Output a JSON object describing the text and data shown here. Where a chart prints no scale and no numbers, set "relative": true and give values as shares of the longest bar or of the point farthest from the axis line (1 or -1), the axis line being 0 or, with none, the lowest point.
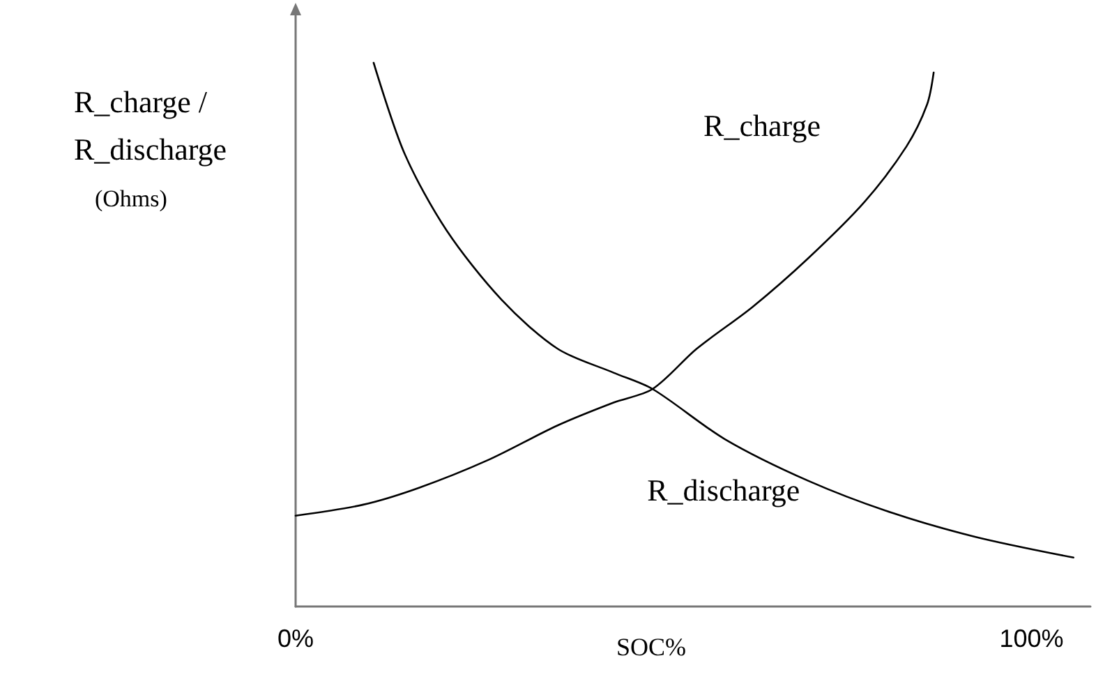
{
  "chart_data": {
    "type": "line",
    "xlabel": "SOC%",
    "ylabel": "R_charge /\nR_discharge\n(Ohms)",
    "relative": true,
    "xlim": [
      0,
      108
    ],
    "xticks": [
      {
        "value": 0,
        "label": "0%"
      },
      {
        "value": 100,
        "label": "100%"
      }
    ],
    "marker": "none",
    "grid": false,
    "legend": false,
    "series": [
      {
        "name": "R_charge",
        "color": "#000000",
        "x": [
          0,
          9.1,
          16.7,
          26.1,
          35.6,
          43.2,
          48.5,
          54.5,
          62.1,
          69.7,
          77.3,
          83.0,
          85.8,
          86.7
        ],
        "values": [
          0.167,
          0.187,
          0.218,
          0.269,
          0.333,
          0.375,
          0.4,
          0.474,
          0.551,
          0.641,
          0.744,
          0.846,
          0.923,
          0.982
        ]
      },
      {
        "name": "R_discharge",
        "color": "#000000",
        "x": [
          10.6,
          14.8,
          20.5,
          28.0,
          35.6,
          43.2,
          48.5,
          58.3,
          69.7,
          81.1,
          92.4,
          105.7
        ],
        "values": [
          1.0,
          0.833,
          0.692,
          0.564,
          0.474,
          0.43,
          0.4,
          0.308,
          0.231,
          0.172,
          0.128,
          0.09
        ]
      }
    ]
  }
}
